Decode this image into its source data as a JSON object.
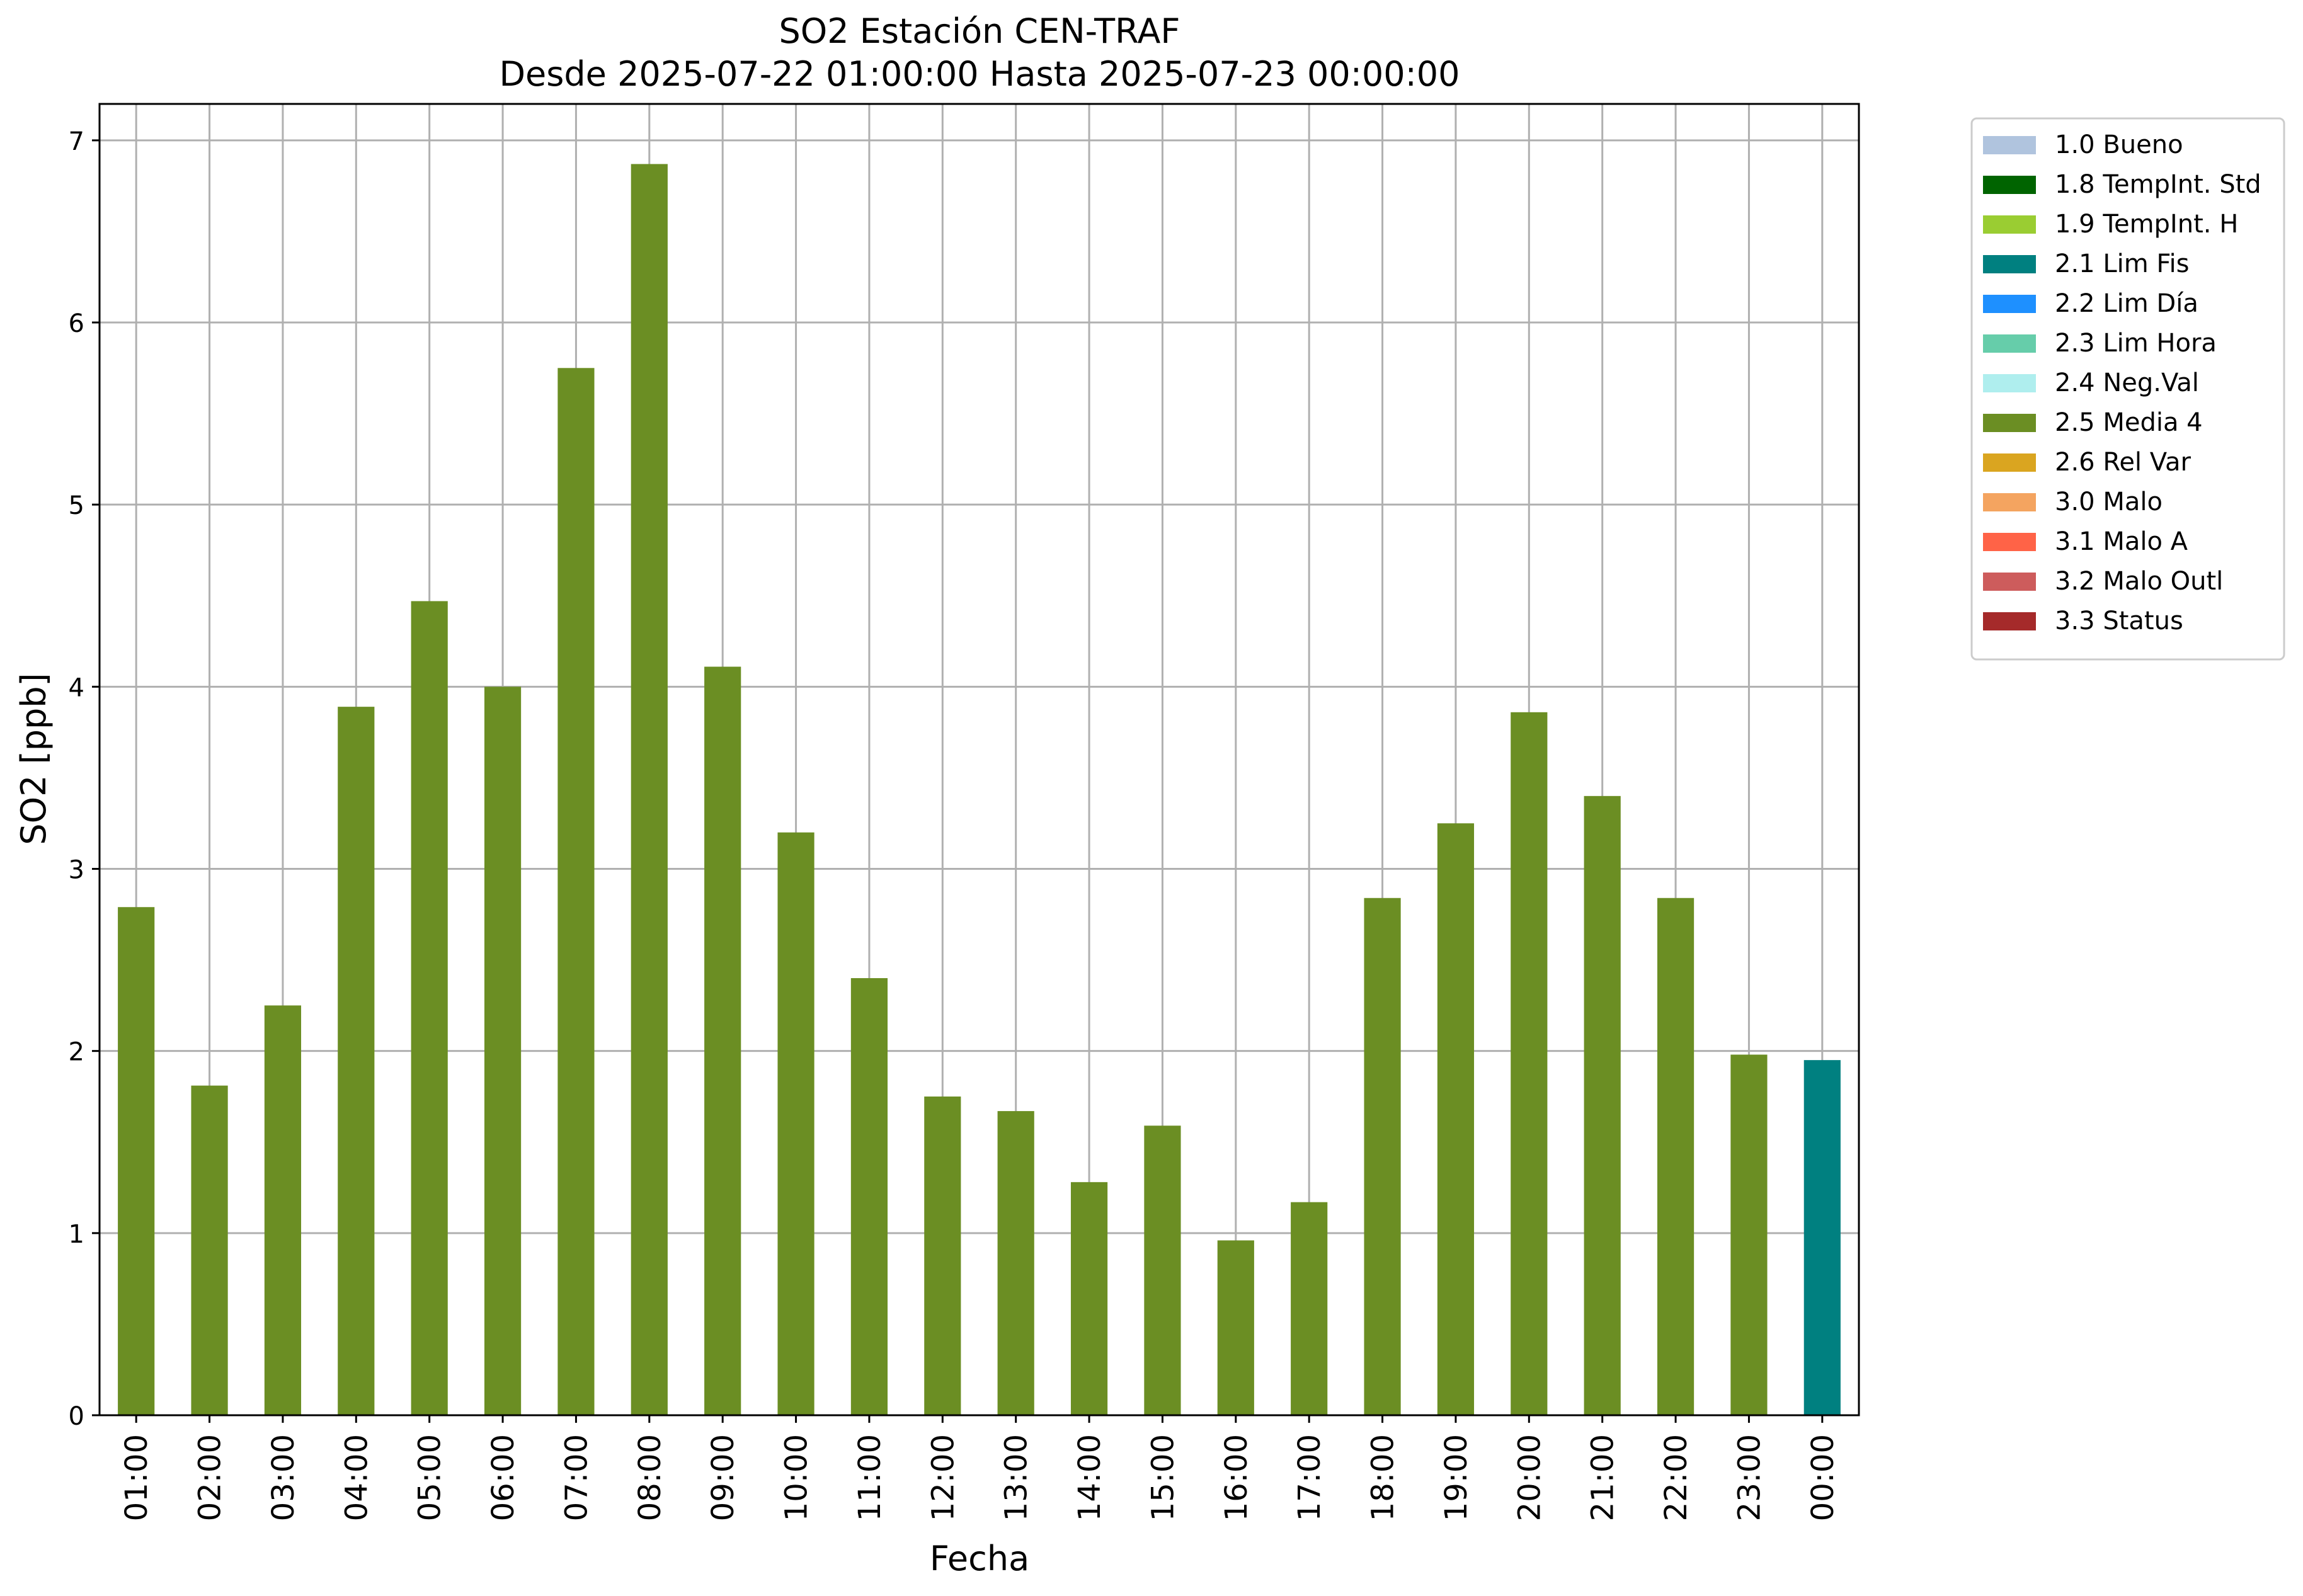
{
  "chart_data": {
    "type": "bar",
    "title": "SO2 Estación CEN-TRAF",
    "subtitle": "Desde 2025-07-22 01:00:00 Hasta 2025-07-23 00:00:00",
    "xlabel": "Fecha",
    "ylabel": "SO2 [ppb]",
    "ylim": [
      0,
      7.2
    ],
    "yticks": [
      "0",
      "1",
      "2",
      "3",
      "4",
      "5",
      "6",
      "7"
    ],
    "grid": true,
    "legend_position": "outside-top-right",
    "categories": [
      "01:00",
      "02:00",
      "03:00",
      "04:00",
      "05:00",
      "06:00",
      "07:00",
      "08:00",
      "09:00",
      "10:00",
      "11:00",
      "12:00",
      "13:00",
      "14:00",
      "15:00",
      "16:00",
      "17:00",
      "18:00",
      "19:00",
      "20:00",
      "21:00",
      "22:00",
      "23:00",
      "00:00"
    ],
    "values": [
      2.79,
      1.81,
      2.25,
      3.89,
      4.47,
      4.0,
      5.75,
      6.87,
      4.11,
      3.2,
      2.4,
      1.75,
      1.67,
      1.28,
      1.59,
      0.96,
      1.17,
      2.84,
      3.25,
      3.86,
      3.4,
      2.84,
      1.98,
      1.95
    ],
    "flags": [
      "2.5 Media 4",
      "2.5 Media 4",
      "2.5 Media 4",
      "2.5 Media 4",
      "2.5 Media 4",
      "2.5 Media 4",
      "2.5 Media 4",
      "2.5 Media 4",
      "2.5 Media 4",
      "2.5 Media 4",
      "2.5 Media 4",
      "2.5 Media 4",
      "2.5 Media 4",
      "2.5 Media 4",
      "2.5 Media 4",
      "2.5 Media 4",
      "2.5 Media 4",
      "2.5 Media 4",
      "2.5 Media 4",
      "2.5 Media 4",
      "2.5 Media 4",
      "2.5 Media 4",
      "2.5 Media 4",
      "2.1 Lim Fis"
    ],
    "legend": [
      {
        "label": "1.0 Bueno",
        "color": "#b0c4de"
      },
      {
        "label": "1.8 TempInt. Std",
        "color": "#006400"
      },
      {
        "label": "1.9 TempInt. H",
        "color": "#9acd32"
      },
      {
        "label": "2.1 Lim Fis",
        "color": "#008080"
      },
      {
        "label": "2.2 Lim Día",
        "color": "#1e90ff"
      },
      {
        "label": "2.3 Lim Hora",
        "color": "#66cdaa"
      },
      {
        "label": "2.4 Neg.Val",
        "color": "#afeeee"
      },
      {
        "label": "2.5 Media 4",
        "color": "#6b8e23"
      },
      {
        "label": "2.6 Rel Var",
        "color": "#daa520"
      },
      {
        "label": "3.0 Malo",
        "color": "#f4a460"
      },
      {
        "label": "3.1 Malo A",
        "color": "#ff6347"
      },
      {
        "label": "3.2 Malo Outl",
        "color": "#cd5c5c"
      },
      {
        "label": "3.3 Status",
        "color": "#a52a2a"
      }
    ]
  }
}
